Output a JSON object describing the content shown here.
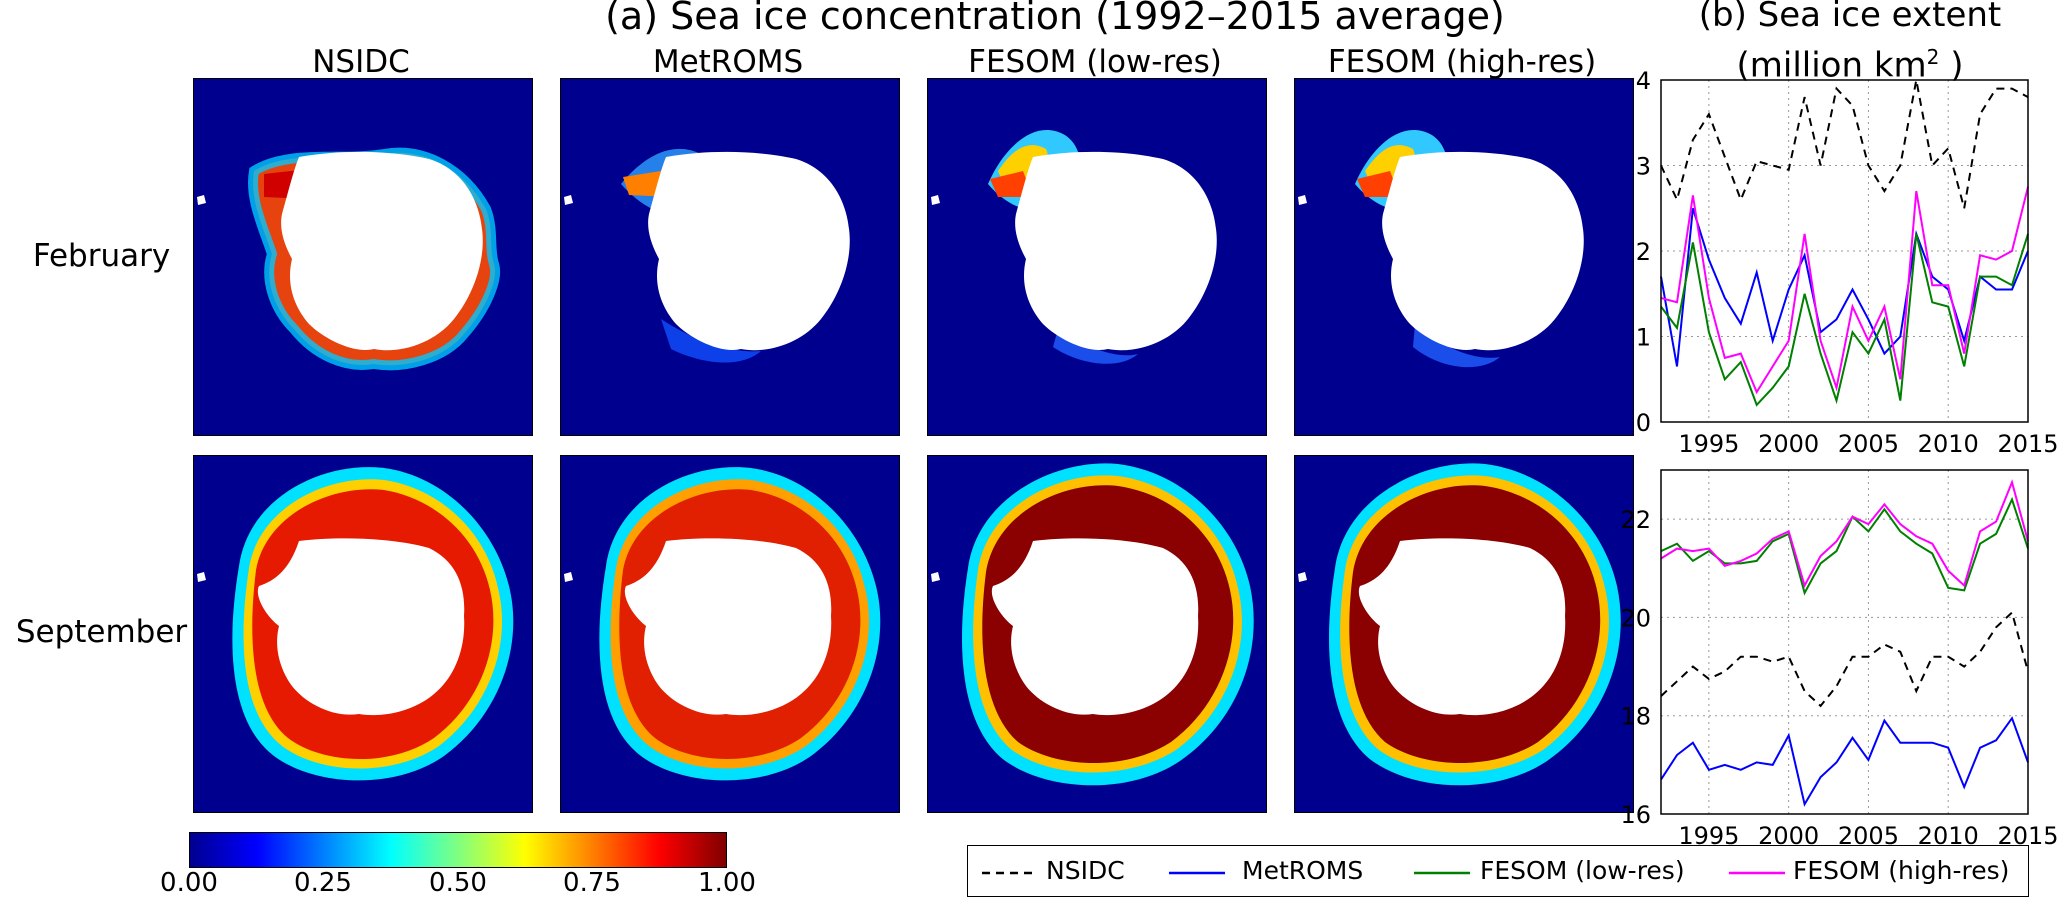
{
  "header": {
    "title_a": "(a) Sea ice concentration (1992–2015 average)",
    "title_b_line1": "(b) Sea ice extent",
    "title_b_line2_prefix": "(million km",
    "title_b_line2_sup": "2",
    "title_b_line2_suffix": " )"
  },
  "maps": {
    "columns": [
      "NSIDC",
      "MetROMS",
      "FESOM (low-res)",
      "FESOM (high-res)"
    ],
    "rows": [
      "February",
      "September"
    ]
  },
  "colorbar": {
    "ticks": [
      "0.00",
      "0.25",
      "0.50",
      "0.75",
      "1.00"
    ],
    "colormap": "jet",
    "low_color": "#00008f",
    "high_color": "#800000"
  },
  "legend": {
    "entries": [
      {
        "label": "NSIDC",
        "color": "#000000",
        "style": "dashed"
      },
      {
        "label": "MetROMS",
        "color": "#0000ff",
        "style": "solid"
      },
      {
        "label": "FESOM (low-res)",
        "color": "#008000",
        "style": "solid"
      },
      {
        "label": "FESOM (high-res)",
        "color": "#ff00ff",
        "style": "solid"
      }
    ]
  },
  "chart_data": [
    {
      "type": "line",
      "panel": "February",
      "x": [
        1992,
        1993,
        1994,
        1995,
        1996,
        1997,
        1998,
        1999,
        2000,
        2001,
        2002,
        2003,
        2004,
        2005,
        2006,
        2007,
        2008,
        2009,
        2010,
        2011,
        2012,
        2013,
        2014,
        2015
      ],
      "xlim": [
        1992,
        2015
      ],
      "ylim": [
        0,
        4
      ],
      "xticks": [
        "1995",
        "2000",
        "2005",
        "2010",
        "2015"
      ],
      "yticks": [
        "0",
        "1",
        "2",
        "3",
        "4"
      ],
      "grid": true,
      "series": [
        {
          "name": "NSIDC",
          "color": "#000000",
          "dashed": true,
          "values": [
            3.0,
            2.6,
            3.3,
            3.6,
            3.1,
            2.6,
            3.05,
            3.0,
            2.95,
            3.8,
            3.0,
            3.9,
            3.7,
            3.0,
            2.7,
            3.0,
            4.0,
            3.0,
            3.2,
            2.5,
            3.6,
            3.9,
            3.9,
            3.8
          ]
        },
        {
          "name": "MetROMS",
          "color": "#0000ff",
          "dashed": false,
          "values": [
            1.7,
            0.65,
            2.5,
            1.9,
            1.45,
            1.15,
            1.75,
            0.95,
            1.55,
            1.95,
            1.05,
            1.2,
            1.55,
            1.2,
            0.8,
            1.0,
            2.2,
            1.7,
            1.55,
            0.95,
            1.7,
            1.55,
            1.55,
            2.0
          ]
        },
        {
          "name": "FESOM (low-res)",
          "color": "#008000",
          "dashed": false,
          "values": [
            1.35,
            1.1,
            2.1,
            1.05,
            0.5,
            0.7,
            0.2,
            0.4,
            0.65,
            1.5,
            0.8,
            0.25,
            1.05,
            0.8,
            1.2,
            0.25,
            2.2,
            1.4,
            1.35,
            0.65,
            1.7,
            1.7,
            1.6,
            2.2
          ]
        },
        {
          "name": "FESOM (high-res)",
          "color": "#ff00ff",
          "dashed": false,
          "values": [
            1.45,
            1.4,
            2.65,
            1.45,
            0.75,
            0.8,
            0.35,
            0.65,
            0.95,
            2.2,
            0.95,
            0.4,
            1.35,
            0.95,
            1.35,
            0.5,
            2.7,
            1.6,
            1.6,
            0.8,
            1.95,
            1.9,
            2.0,
            2.75
          ]
        }
      ]
    },
    {
      "type": "line",
      "panel": "September",
      "x": [
        1992,
        1993,
        1994,
        1995,
        1996,
        1997,
        1998,
        1999,
        2000,
        2001,
        2002,
        2003,
        2004,
        2005,
        2006,
        2007,
        2008,
        2009,
        2010,
        2011,
        2012,
        2013,
        2014,
        2015
      ],
      "xlim": [
        1992,
        2015
      ],
      "ylim": [
        16,
        23
      ],
      "xticks": [
        "1995",
        "2000",
        "2005",
        "2010",
        "2015"
      ],
      "yticks": [
        "16",
        "18",
        "20",
        "22"
      ],
      "grid": true,
      "series": [
        {
          "name": "NSIDC",
          "color": "#000000",
          "dashed": true,
          "values": [
            18.4,
            18.7,
            19.0,
            18.75,
            18.9,
            19.2,
            19.2,
            19.1,
            19.2,
            18.5,
            18.2,
            18.6,
            19.2,
            19.2,
            19.45,
            19.3,
            18.5,
            19.2,
            19.2,
            19.0,
            19.3,
            19.8,
            20.1,
            18.9
          ]
        },
        {
          "name": "MetROMS",
          "color": "#0000ff",
          "dashed": false,
          "values": [
            16.7,
            17.2,
            17.45,
            16.9,
            17.0,
            16.9,
            17.05,
            17.0,
            17.6,
            16.2,
            16.75,
            17.05,
            17.55,
            17.1,
            17.9,
            17.45,
            17.45,
            17.45,
            17.35,
            16.55,
            17.35,
            17.5,
            17.95,
            17.05
          ]
        },
        {
          "name": "FESOM (low-res)",
          "color": "#008000",
          "dashed": false,
          "values": [
            21.35,
            21.5,
            21.15,
            21.35,
            21.1,
            21.1,
            21.15,
            21.55,
            21.7,
            20.5,
            21.1,
            21.35,
            22.05,
            21.75,
            22.2,
            21.75,
            21.5,
            21.3,
            20.6,
            20.55,
            21.5,
            21.7,
            22.4,
            21.4
          ]
        },
        {
          "name": "FESOM (high-res)",
          "color": "#ff00ff",
          "dashed": false,
          "values": [
            21.2,
            21.4,
            21.35,
            21.4,
            21.05,
            21.15,
            21.3,
            21.6,
            21.75,
            20.65,
            21.25,
            21.55,
            22.05,
            21.9,
            22.3,
            21.9,
            21.65,
            21.5,
            20.95,
            20.65,
            21.75,
            21.95,
            22.75,
            21.55
          ]
        }
      ]
    }
  ]
}
